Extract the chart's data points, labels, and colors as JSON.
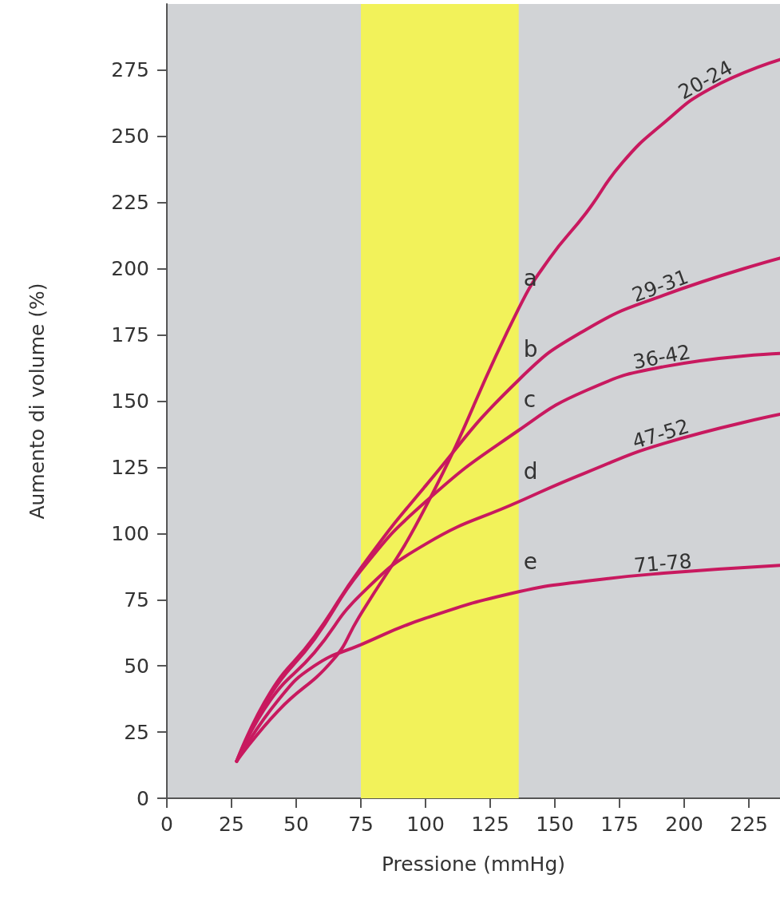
{
  "chart_data": {
    "type": "line",
    "xlabel": "Pressione (mmHg)",
    "ylabel": "Aumento di volume (%)",
    "xlim": [
      0,
      237
    ],
    "ylim": [
      0,
      300
    ],
    "xticks": [
      0,
      25,
      50,
      75,
      100,
      125,
      150,
      175,
      200,
      225
    ],
    "yticks": [
      0,
      25,
      50,
      75,
      100,
      125,
      150,
      175,
      200,
      225,
      250,
      275
    ],
    "series": [
      {
        "name": "20-24",
        "color": "#c8195f",
        "x": [
          27,
          43,
          64,
          74,
          100,
          136,
          148,
          162,
          176,
          192,
          210,
          237
        ],
        "values": [
          14,
          33,
          52,
          68,
          110,
          185,
          204,
          221,
          240,
          255,
          268,
          279
        ]
      },
      {
        "name": "29-31",
        "color": "#c8195f",
        "x": [
          27,
          40,
          57,
          75,
          100,
          136,
          162,
          192,
          237
        ],
        "values": [
          14,
          40,
          61,
          87,
          118,
          158,
          177,
          190,
          204
        ]
      },
      {
        "name": "36-42",
        "color": "#c8195f",
        "x": [
          27,
          40,
          57,
          75,
          100,
          136,
          162,
          192,
          237
        ],
        "values": [
          14,
          39,
          60,
          86,
          112,
          139,
          154,
          163,
          168
        ]
      },
      {
        "name": "47-52",
        "color": "#c8195f",
        "x": [
          27,
          40,
          57,
          75,
          100,
          136,
          162,
          192,
          237
        ],
        "values": [
          14,
          37,
          55,
          77,
          96,
          112,
          123,
          134,
          145
        ]
      },
      {
        "name": "71-78",
        "color": "#c8195f",
        "x": [
          27,
          43,
          57,
          75,
          100,
          136,
          162,
          192,
          237
        ],
        "values": [
          14,
          37,
          50,
          58,
          68,
          78,
          82,
          85,
          88
        ]
      }
    ],
    "bands": [
      {
        "axis": "x",
        "from": 75,
        "to": 136,
        "color": "#f2f25a"
      }
    ],
    "annotations": [
      "a",
      "b",
      "c",
      "d",
      "e"
    ],
    "legend": false,
    "grid": false
  }
}
